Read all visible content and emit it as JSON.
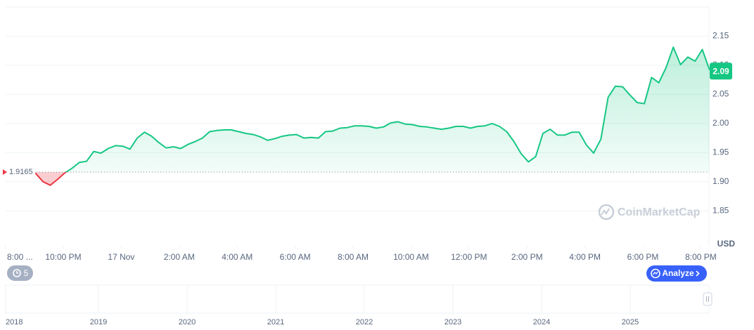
{
  "chart_data": {
    "type": "line",
    "x": [
      0.05,
      0.3,
      0.55,
      0.8,
      1.05,
      1.3,
      1.55,
      1.8,
      2.05,
      2.3,
      2.55,
      2.8,
      3.05,
      3.3,
      3.55,
      3.8,
      4.05,
      4.3,
      4.55,
      4.8,
      5.05,
      5.3,
      5.55,
      5.8,
      6.05,
      6.3,
      6.55,
      6.8,
      7.05,
      7.3,
      7.55,
      7.8,
      8.05,
      8.3,
      8.55,
      8.8,
      9.05,
      9.3,
      9.55,
      9.8,
      10.05,
      10.3,
      10.55,
      10.8,
      11.05,
      11.3,
      11.55,
      11.8,
      12.05,
      12.3,
      12.55,
      12.8,
      13.05,
      13.3,
      13.55,
      13.8,
      14.05,
      14.3,
      14.55,
      14.8,
      15.05,
      15.3,
      15.55,
      15.8,
      16.05,
      16.3,
      16.55,
      16.8,
      17.05,
      17.3,
      17.55,
      17.8,
      18.05,
      18.3,
      18.55,
      18.8,
      19.05,
      19.3,
      19.55,
      19.8,
      20.05,
      20.3,
      20.55,
      20.8,
      21.05,
      21.3,
      21.55,
      21.8,
      22.05,
      22.3,
      22.55,
      22.8,
      23.05,
      23.3,
      23.55,
      23.8,
      24.05,
      24.3
    ],
    "values": [
      1.916,
      1.918,
      1.917,
      1.916,
      1.914,
      1.9,
      1.894,
      1.904,
      1.915,
      1.923,
      1.933,
      1.935,
      1.952,
      1.949,
      1.957,
      1.962,
      1.961,
      1.956,
      1.975,
      1.985,
      1.978,
      1.967,
      1.958,
      1.96,
      1.957,
      1.964,
      1.969,
      1.975,
      1.986,
      1.988,
      1.989,
      1.989,
      1.986,
      1.983,
      1.981,
      1.977,
      1.971,
      1.974,
      1.978,
      1.98,
      1.981,
      1.975,
      1.976,
      1.975,
      1.986,
      1.987,
      1.992,
      1.993,
      1.996,
      1.996,
      1.995,
      1.992,
      1.994,
      2.001,
      2.003,
      1.999,
      1.998,
      1.995,
      1.994,
      1.992,
      1.99,
      1.992,
      1.995,
      1.995,
      1.992,
      1.995,
      1.996,
      2.0,
      1.995,
      1.986,
      1.969,
      1.948,
      1.934,
      1.943,
      1.983,
      1.99,
      1.98,
      1.98,
      1.985,
      1.985,
      1.963,
      1.949,
      1.973,
      2.045,
      2.064,
      2.063,
      2.049,
      2.036,
      2.034,
      2.079,
      2.07,
      2.096,
      2.131,
      2.101,
      2.114,
      2.107,
      2.127,
      2.092
    ],
    "color_up": "#16c784",
    "color_down": "#ea3943",
    "baseline": 1.9165,
    "current_price": 2.09,
    "xlim": [
      0,
      24.3
    ],
    "xticks": [
      {
        "value": 0,
        "label": "8:00 ..."
      },
      {
        "value": 2,
        "label": "10:00 PM"
      },
      {
        "value": 4,
        "label": "17 Nov"
      },
      {
        "value": 6,
        "label": "2:00 AM"
      },
      {
        "value": 8,
        "label": "4:00 AM"
      },
      {
        "value": 10,
        "label": "6:00 AM"
      },
      {
        "value": 12,
        "label": "8:00 AM"
      },
      {
        "value": 14,
        "label": "10:00 AM"
      },
      {
        "value": 16,
        "label": "12:00 PM"
      },
      {
        "value": 18,
        "label": "2:00 PM"
      },
      {
        "value": 20,
        "label": "4:00 PM"
      },
      {
        "value": 22,
        "label": "6:00 PM"
      },
      {
        "value": 24,
        "label": "8:00 PM"
      }
    ],
    "ylim": [
      1.79,
      2.2
    ],
    "yticks": [
      1.85,
      {
        "value": 1.9,
        "label": "1.90"
      },
      1.95,
      {
        "value": 2,
        "label": "2.00"
      },
      2.05,
      {
        "value": 2.1,
        "label": "2.10"
      },
      2.15
    ],
    "grid": true,
    "unit_label": "USD"
  },
  "watermark": "CoinMarketCap",
  "controls": {
    "history_count": 5,
    "analyze": "Analyze"
  },
  "navigator": {
    "years": [
      "2018",
      "2019",
      "2020",
      "2021",
      "2022",
      "2023",
      "2024",
      "2025"
    ]
  }
}
